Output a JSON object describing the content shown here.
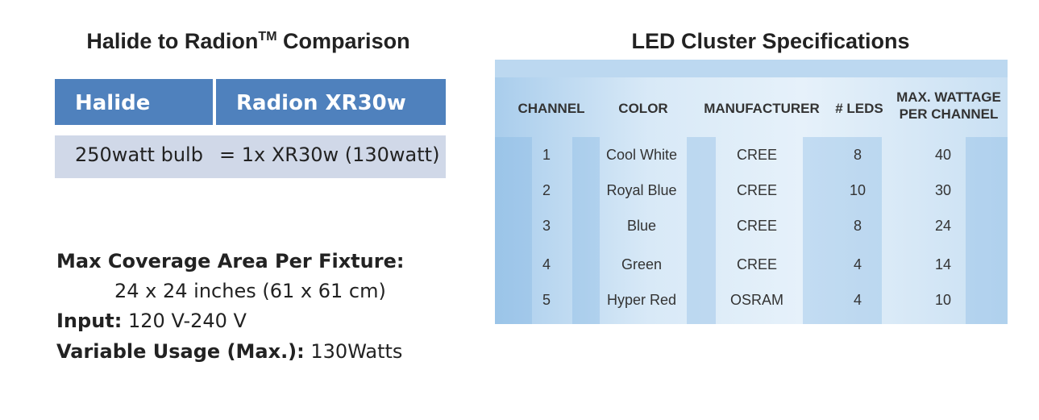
{
  "left": {
    "title": {
      "main": "Halide to Radion",
      "superscript": "TM",
      "rest": "Comparison"
    },
    "comparison": {
      "headers": [
        "Halide",
        "Radion XR30w"
      ],
      "row": [
        "250watt bulb",
        "= 1x XR30w (130watt)"
      ]
    },
    "specs": [
      {
        "label": "Max Coverage Area Per Fixture:",
        "value": "24 x 24 inches (61 x 61 cm)"
      },
      {
        "label": "Input:",
        "value": "120 V-240 V"
      },
      {
        "label": "Variable Usage (Max.):",
        "value": "130Watts"
      }
    ]
  },
  "right": {
    "title": "LED Cluster Specifications",
    "table": {
      "headers": [
        "CHANNEL",
        "COLOR",
        "MANUFACTURER",
        "# LEDS",
        "MAX. WATTAGE PER CHANNEL"
      ],
      "rows": [
        [
          1,
          "Cool White",
          "CREE",
          8,
          40
        ],
        [
          2,
          "Royal Blue",
          "CREE",
          10,
          30
        ],
        [
          3,
          "Blue",
          "CREE",
          8,
          24
        ],
        [
          4,
          "Green",
          "CREE",
          4,
          14
        ],
        [
          5,
          "Hyper Red",
          "OSRAM",
          4,
          10
        ]
      ]
    }
  }
}
